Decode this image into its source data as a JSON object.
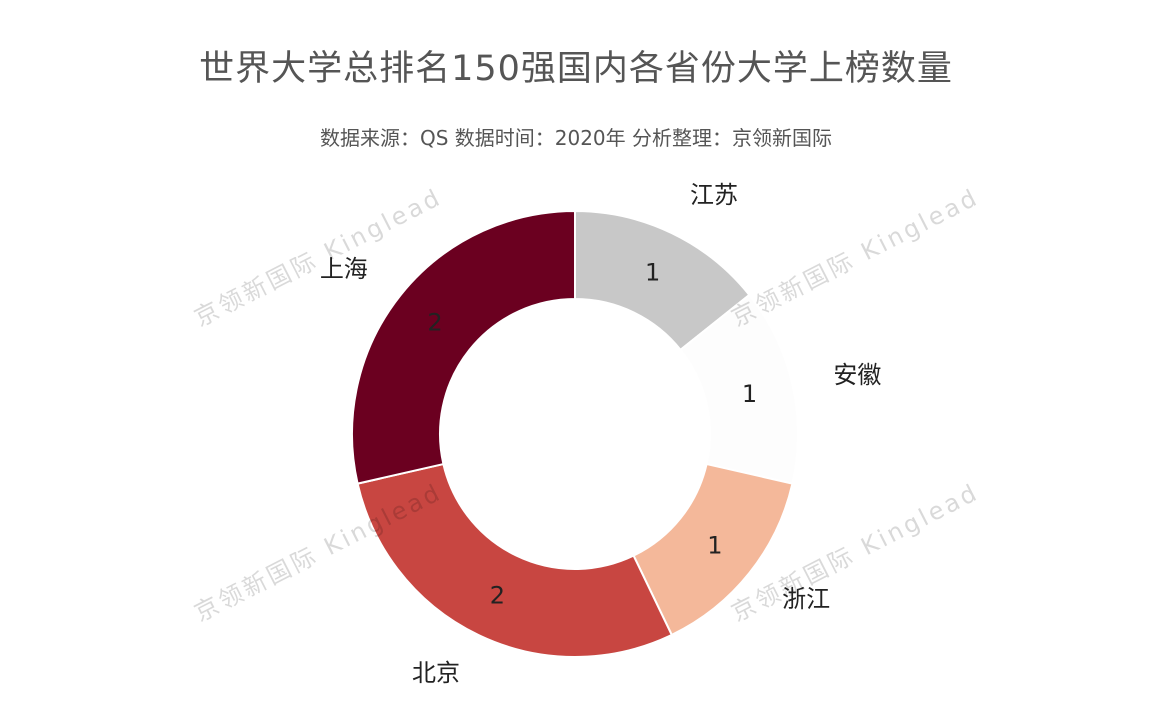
{
  "chart_data": {
    "type": "pie",
    "donut": true,
    "title": "世界大学总排名150强国内各省份大学上榜数量",
    "subtitle": "数据来源：QS 数据时间：2020年 分析整理：京领新国际",
    "categories": [
      "江苏",
      "安徽",
      "浙江",
      "北京",
      "上海"
    ],
    "values": [
      1,
      1,
      1,
      2,
      2
    ],
    "colors": [
      "#c8c8c8",
      "#fdfdfd",
      "#f4b89a",
      "#c84641",
      "#6b0020"
    ],
    "start_angle_deg": 0,
    "direction": "clockwise",
    "legend": "none"
  },
  "watermark": {
    "text": "京领新国际 Kinglead"
  }
}
